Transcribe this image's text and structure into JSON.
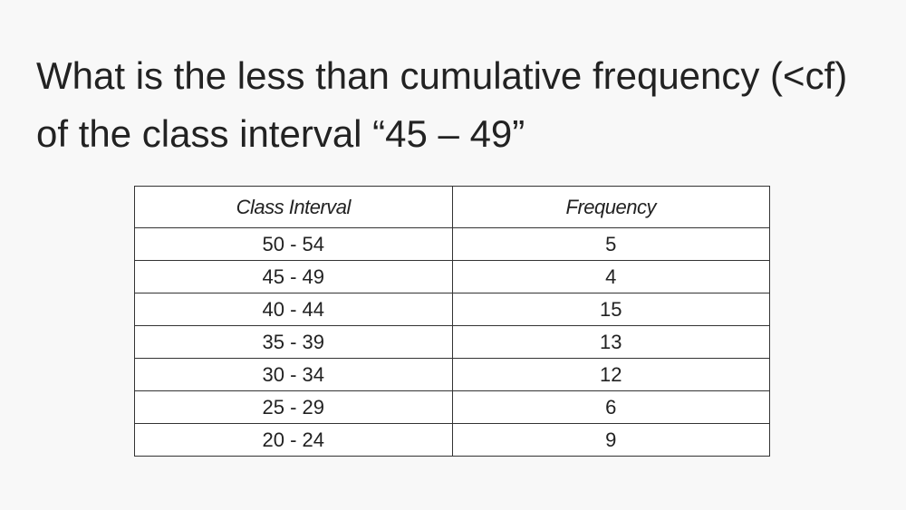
{
  "question": "What is the less than cumulative frequency (<cf) of the class interval “45 – 49”",
  "table": {
    "header": [
      "Class Interval",
      "Frequency"
    ],
    "rows": [
      [
        "50 - 54",
        5
      ],
      [
        "45 - 49",
        4
      ],
      [
        "40 - 44",
        15
      ],
      [
        "35 - 39",
        13
      ],
      [
        "30 - 34",
        12
      ],
      [
        "25 - 29",
        6
      ],
      [
        "20 - 24",
        9
      ]
    ]
  }
}
